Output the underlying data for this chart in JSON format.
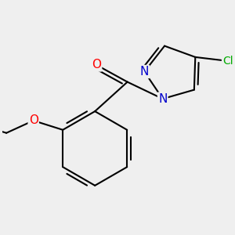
{
  "background_color": "#efefef",
  "bond_color": "#000000",
  "bond_width": 1.5,
  "atom_colors": {
    "O": "#ff0000",
    "N": "#0000cc",
    "Cl": "#00aa00",
    "C": "#000000"
  },
  "font_size_atom": 11,
  "font_size_cl": 10
}
